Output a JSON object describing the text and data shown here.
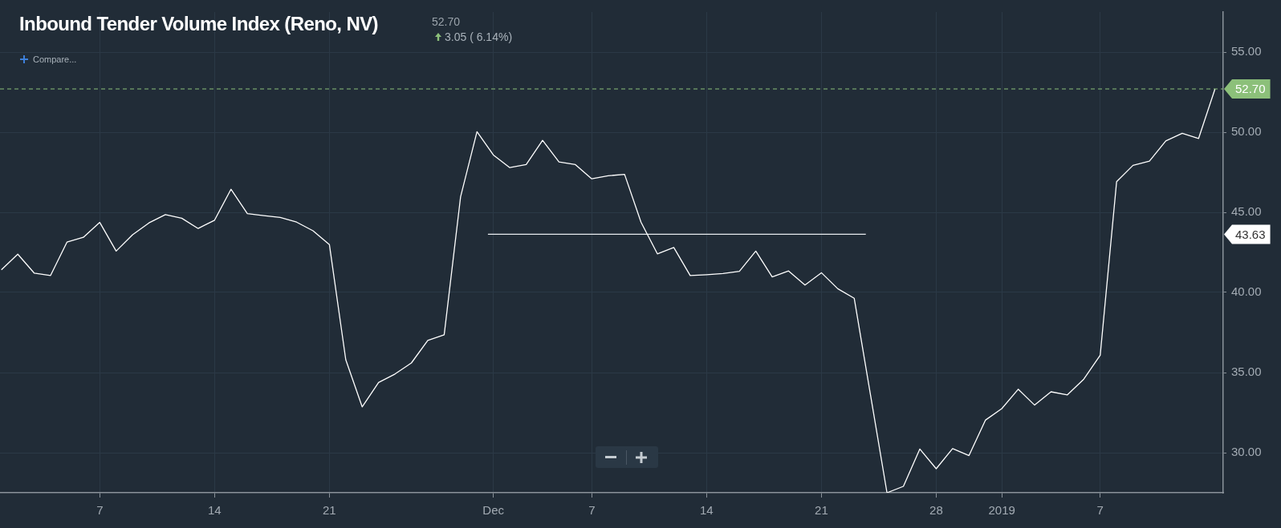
{
  "chart_data": {
    "type": "line",
    "title": "Inbound Tender Volume Index (Reno, NV)",
    "subtitle": "52.70",
    "annotations": [
      "3.05 ( 6.14%)",
      "Compare...",
      "43.63"
    ],
    "series": [
      {
        "color": "#ffffff",
        "x": [
          "2018-11-01",
          "2018-11-02",
          "2018-11-03",
          "2018-11-04",
          "2018-11-05",
          "2018-11-06",
          "2018-11-07",
          "2018-11-08",
          "2018-11-09",
          "2018-11-10",
          "2018-11-11",
          "2018-11-12",
          "2018-11-13",
          "2018-11-14",
          "2018-11-15",
          "2018-11-16",
          "2018-11-17",
          "2018-11-18",
          "2018-11-19",
          "2018-11-20",
          "2018-11-21",
          "2018-11-22",
          "2018-11-23",
          "2018-11-24",
          "2018-11-25",
          "2018-11-26",
          "2018-11-27",
          "2018-11-28",
          "2018-11-29",
          "2018-11-30",
          "2018-12-01",
          "2018-12-02",
          "2018-12-03",
          "2018-12-04",
          "2018-12-05",
          "2018-12-06",
          "2018-12-07",
          "2018-12-08",
          "2018-12-09",
          "2018-12-10",
          "2018-12-11",
          "2018-12-12",
          "2018-12-13",
          "2018-12-14",
          "2018-12-15",
          "2018-12-16",
          "2018-12-17",
          "2018-12-18",
          "2018-12-19",
          "2018-12-20",
          "2018-12-21",
          "2018-12-22",
          "2018-12-23",
          "2018-12-24",
          "2018-12-25",
          "2018-12-26",
          "2018-12-27",
          "2018-12-28",
          "2018-12-29",
          "2018-12-30",
          "2018-12-31",
          "2019-01-01",
          "2019-01-02",
          "2019-01-03",
          "2019-01-04",
          "2019-01-05",
          "2019-01-06",
          "2019-01-07",
          "2019-01-08",
          "2019-01-09",
          "2019-01-10",
          "2019-01-11",
          "2019-01-12",
          "2019-01-13",
          "2019-01-14"
        ],
        "values": [
          41.41,
          42.39,
          41.21,
          41.06,
          43.14,
          43.44,
          44.37,
          42.58,
          43.6,
          44.34,
          44.86,
          44.63,
          43.99,
          44.51,
          46.44,
          44.92,
          44.79,
          44.68,
          44.39,
          43.85,
          42.99,
          35.8,
          32.86,
          34.38,
          34.91,
          35.6,
          37.01,
          37.36,
          45.97,
          50.03,
          48.58,
          47.79,
          47.98,
          49.49,
          48.14,
          47.98,
          47.09,
          47.28,
          47.37,
          44.39,
          42.41,
          42.81,
          41.06,
          41.11,
          41.18,
          41.32,
          42.58,
          40.97,
          41.34,
          40.46,
          41.23,
          40.23,
          39.64,
          33.57,
          27.5,
          27.9,
          30.23,
          29.0,
          30.26,
          29.82,
          32.03,
          32.75,
          33.96,
          32.97,
          33.8,
          33.61,
          34.59,
          36.08,
          46.91,
          47.93,
          48.19,
          49.46,
          49.93,
          49.61,
          52.7
        ]
      },
      {
        "color": "#e8ecef",
        "x": [
          "2018-11-30T16:00",
          "2018-12-23T17:00"
        ],
        "values": [
          43.63,
          43.63
        ]
      }
    ],
    "xlim": [
      "2018-10-31T22:00",
      "2019-01-14T12:00"
    ],
    "xticks": [
      {
        "value": "2018-11-07",
        "label": "7"
      },
      {
        "value": "2018-11-14",
        "label": "14"
      },
      {
        "value": "2018-11-21",
        "label": "21"
      },
      {
        "value": "2018-12-01",
        "label": "Dec"
      },
      {
        "value": "2018-12-07",
        "label": "7"
      },
      {
        "value": "2018-12-14",
        "label": "14"
      },
      {
        "value": "2018-12-21",
        "label": "21"
      },
      {
        "value": "2018-12-28",
        "label": "28"
      },
      {
        "value": "2019-01-01",
        "label": "2019"
      },
      {
        "value": "2019-01-07",
        "label": "7"
      }
    ],
    "ylim": [
      27.5,
      57.5
    ],
    "yticks": [
      {
        "value": 30,
        "label": "30.00"
      },
      {
        "value": 35,
        "label": "35.00"
      },
      {
        "value": 40,
        "label": "40.00"
      },
      {
        "value": 45,
        "label": "45.00"
      },
      {
        "value": 50,
        "label": "50.00"
      },
      {
        "value": 55,
        "label": "55.00"
      }
    ],
    "ref_lines": [
      {
        "axis": "y",
        "value": 52.7,
        "label": "52.70",
        "color": "#8cc07a",
        "line_style": "dashed"
      }
    ],
    "grid": true,
    "marker": "none",
    "line_style": "solid"
  }
}
